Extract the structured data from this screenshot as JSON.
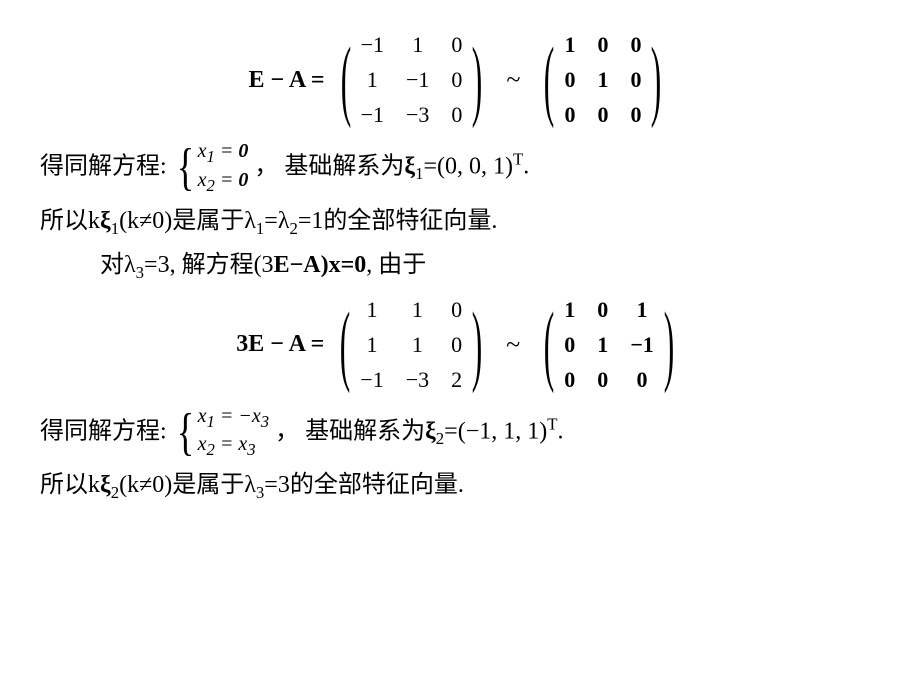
{
  "background_color": "#ffffff",
  "text_color": "#000000",
  "font_family_cjk": "SimSun",
  "font_family_math": "Times New Roman",
  "eq1": {
    "lhs": "E − A =",
    "matrix1": [
      "−1",
      "1",
      "0",
      "1",
      "−1",
      "0",
      "−1",
      "−3",
      "0"
    ],
    "sep": "~",
    "matrix2": [
      "1",
      "0",
      "0",
      "0",
      "1",
      "0",
      "0",
      "0",
      "0"
    ],
    "matrix2_bold": true
  },
  "line1": {
    "prefix": "得同解方程:",
    "sys_row1": "x₁ = 0",
    "sys_row2": "x₂ = 0",
    "mid": "，  基础解系为",
    "xi": "ξ",
    "xi_sub": "1",
    "vec": "=(0, 0, 1)",
    "sup": "T",
    "end": "."
  },
  "line2": {
    "a": "所以k",
    "xi": "ξ",
    "xi_sub": "1",
    "b": "(k≠0)是属于λ",
    "s1": "1",
    "c": "=λ",
    "s2": "2",
    "d": "=1的全部特征向量."
  },
  "line3": {
    "a": "对λ",
    "s3": "3",
    "b": "=3,   解方程(3",
    "ea": "E−A)x=0",
    "c": ",   由于"
  },
  "eq2": {
    "lhs": "3E − A =",
    "matrix1": [
      "1",
      "1",
      "0",
      "1",
      "1",
      "0",
      "−1",
      "−3",
      "2"
    ],
    "sep": "~",
    "matrix2": [
      "1",
      "0",
      "1",
      "0",
      "1",
      "−1",
      "0",
      "0",
      "0"
    ],
    "matrix2_bold": true
  },
  "line4": {
    "prefix": "得同解方程:",
    "sys_row1": "x₁ = −x₃",
    "sys_row2": "x₂ = x₃",
    "mid": "，   基础解系为",
    "xi": "ξ",
    "xi_sub": "2",
    "vec": "=(−1,  1,  1)",
    "sup": "T",
    "end": "."
  },
  "line5": {
    "a": "所以k",
    "xi": "ξ",
    "xi_sub": "2",
    "b": "(k≠0)是属于λ",
    "s3": "3",
    "c": "=3的全部特征向量."
  }
}
